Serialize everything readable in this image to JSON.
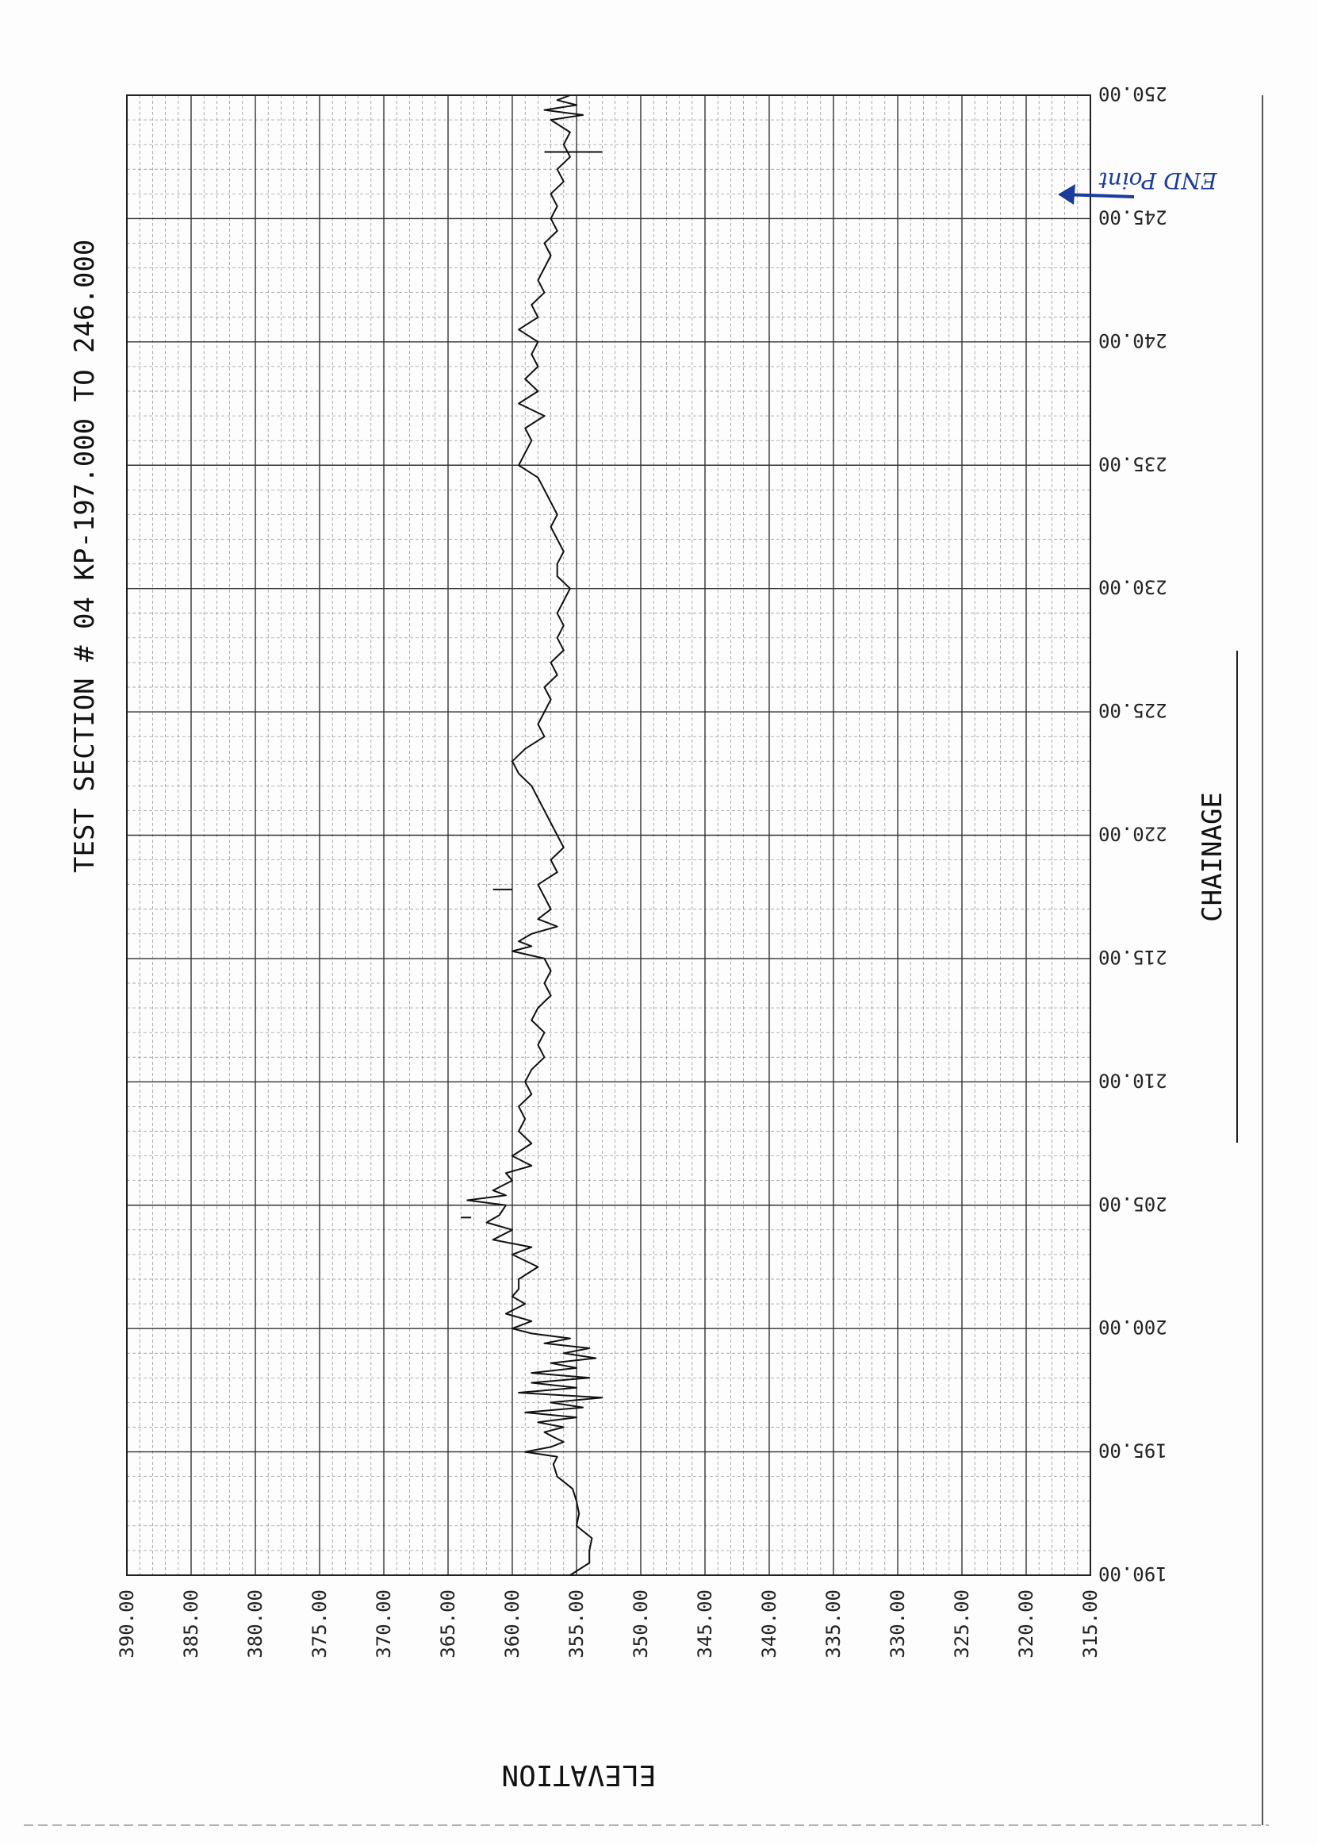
{
  "title": "TEST SECTION # 04 KP-197.000 TO 246.000",
  "annotation": "END Point",
  "chart_data": {
    "type": "line",
    "title": "TEST SECTION # 04 KP-197.000 TO 246.000",
    "xlabel": "CHAINAGE",
    "ylabel": "ELEVATION",
    "x_axis": {
      "min": 190,
      "max": 250,
      "major_step": 5,
      "tick_labels": [
        "190.00",
        "195.00",
        "200.00",
        "205.00",
        "210.00",
        "215.00",
        "220.00",
        "225.00",
        "230.00",
        "235.00",
        "240.00",
        "245.00",
        "250.00"
      ]
    },
    "y_axis": {
      "min": 315,
      "max": 390,
      "major_step": 5,
      "tick_labels": [
        "390.00",
        "385.00",
        "380.00",
        "375.00",
        "370.00",
        "365.00",
        "360.00",
        "355.00",
        "350.00",
        "345.00",
        "340.00",
        "335.00",
        "330.00",
        "325.00",
        "320.00",
        "315.00"
      ]
    },
    "grid": true,
    "orientation": "rotated-90",
    "series": [
      {
        "color": "#111111",
        "points": [
          [
            190.0,
            355.5
          ],
          [
            190.5,
            354.0
          ],
          [
            191.0,
            354.0
          ],
          [
            191.5,
            353.8
          ],
          [
            192.0,
            355.0
          ],
          [
            192.5,
            354.8
          ],
          [
            193.0,
            355.0
          ],
          [
            193.5,
            355.3
          ],
          [
            194.0,
            356.5
          ],
          [
            194.5,
            356.8
          ],
          [
            194.8,
            356.5
          ],
          [
            195.0,
            359.0
          ],
          [
            195.2,
            357.0
          ],
          [
            195.4,
            356.0
          ],
          [
            195.6,
            356.8
          ],
          [
            195.8,
            357.5
          ],
          [
            196.0,
            356.0
          ],
          [
            196.2,
            358.0
          ],
          [
            196.4,
            355.0
          ],
          [
            196.6,
            359.0
          ],
          [
            196.8,
            354.5
          ],
          [
            197.0,
            357.0
          ],
          [
            197.2,
            353.0
          ],
          [
            197.4,
            359.5
          ],
          [
            197.6,
            355.0
          ],
          [
            197.8,
            358.5
          ],
          [
            198.0,
            354.0
          ],
          [
            198.2,
            358.5
          ],
          [
            198.4,
            355.0
          ],
          [
            198.6,
            357.0
          ],
          [
            198.8,
            353.5
          ],
          [
            199.0,
            356.0
          ],
          [
            199.2,
            354.0
          ],
          [
            199.4,
            357.5
          ],
          [
            199.6,
            355.5
          ],
          [
            199.8,
            358.5
          ],
          [
            200.0,
            360.0
          ],
          [
            200.3,
            358.5
          ],
          [
            200.6,
            360.5
          ],
          [
            201.0,
            359.0
          ],
          [
            201.3,
            360.0
          ],
          [
            201.6,
            359.5
          ],
          [
            202.0,
            359.5
          ],
          [
            202.5,
            358.0
          ],
          [
            203.0,
            360.0
          ],
          [
            203.3,
            358.5
          ],
          [
            203.6,
            361.5
          ],
          [
            204.0,
            360.0
          ],
          [
            204.3,
            362.0
          ],
          [
            204.6,
            361.0
          ],
          [
            205.0,
            360.5
          ],
          [
            205.2,
            363.5
          ],
          [
            205.4,
            360.5
          ],
          [
            205.6,
            361.5
          ],
          [
            206.0,
            360.0
          ],
          [
            206.3,
            360.5
          ],
          [
            206.6,
            358.5
          ],
          [
            207.0,
            360.0
          ],
          [
            207.5,
            358.5
          ],
          [
            208.0,
            359.5
          ],
          [
            208.5,
            359.0
          ],
          [
            209.0,
            359.5
          ],
          [
            209.5,
            358.5
          ],
          [
            210.0,
            359.0
          ],
          [
            210.5,
            358.5
          ],
          [
            211.0,
            357.5
          ],
          [
            211.5,
            358.0
          ],
          [
            212.0,
            357.5
          ],
          [
            212.5,
            358.5
          ],
          [
            213.0,
            358.0
          ],
          [
            213.5,
            357.0
          ],
          [
            214.0,
            357.5
          ],
          [
            214.5,
            357.0
          ],
          [
            215.0,
            357.5
          ],
          [
            215.3,
            360.0
          ],
          [
            215.5,
            358.5
          ],
          [
            215.7,
            359.5
          ],
          [
            216.0,
            358.5
          ],
          [
            216.3,
            356.5
          ],
          [
            216.6,
            358.0
          ],
          [
            217.0,
            357.0
          ],
          [
            217.5,
            357.5
          ],
          [
            218.0,
            358.0
          ],
          [
            218.5,
            356.5
          ],
          [
            219.0,
            357.0
          ],
          [
            219.5,
            356.0
          ],
          [
            220.0,
            356.5
          ],
          [
            220.5,
            357.0
          ],
          [
            221.0,
            357.5
          ],
          [
            221.5,
            358.0
          ],
          [
            222.0,
            358.5
          ],
          [
            222.5,
            359.5
          ],
          [
            223.0,
            360.0
          ],
          [
            223.5,
            359.0
          ],
          [
            224.0,
            357.5
          ],
          [
            224.5,
            358.0
          ],
          [
            225.0,
            357.5
          ],
          [
            225.5,
            357.0
          ],
          [
            226.0,
            357.5
          ],
          [
            226.5,
            356.5
          ],
          [
            227.0,
            357.0
          ],
          [
            227.5,
            356.0
          ],
          [
            228.0,
            356.5
          ],
          [
            228.5,
            356.0
          ],
          [
            229.0,
            356.5
          ],
          [
            229.5,
            356.0
          ],
          [
            230.0,
            355.5
          ],
          [
            230.5,
            356.5
          ],
          [
            231.0,
            356.5
          ],
          [
            231.5,
            356.0
          ],
          [
            232.0,
            356.5
          ],
          [
            232.5,
            357.0
          ],
          [
            233.0,
            356.5
          ],
          [
            233.5,
            357.0
          ],
          [
            234.0,
            357.5
          ],
          [
            234.5,
            358.0
          ],
          [
            235.0,
            359.5
          ],
          [
            235.5,
            359.0
          ],
          [
            236.0,
            358.5
          ],
          [
            236.5,
            359.0
          ],
          [
            237.0,
            357.5
          ],
          [
            237.5,
            359.5
          ],
          [
            238.0,
            358.0
          ],
          [
            238.5,
            359.0
          ],
          [
            239.0,
            358.0
          ],
          [
            239.5,
            358.5
          ],
          [
            240.0,
            358.0
          ],
          [
            240.5,
            359.5
          ],
          [
            241.0,
            358.0
          ],
          [
            241.5,
            358.5
          ],
          [
            242.0,
            357.5
          ],
          [
            242.5,
            358.0
          ],
          [
            243.0,
            357.5
          ],
          [
            243.5,
            357.0
          ],
          [
            244.0,
            357.5
          ],
          [
            244.5,
            356.5
          ],
          [
            245.0,
            357.0
          ],
          [
            245.5,
            356.5
          ],
          [
            246.0,
            357.0
          ],
          [
            246.5,
            356.0
          ],
          [
            247.0,
            356.5
          ],
          [
            247.5,
            355.5
          ],
          [
            248.0,
            356.0
          ],
          [
            248.5,
            355.5
          ],
          [
            249.0,
            357.0
          ],
          [
            249.2,
            354.5
          ],
          [
            249.4,
            357.5
          ],
          [
            249.6,
            355.0
          ],
          [
            249.8,
            356.5
          ],
          [
            250.0,
            355.5
          ]
        ]
      },
      {
        "color": "#111111",
        "segments": [
          [
            [
              247.7,
              353.0
            ],
            [
              247.7,
              357.5
            ]
          ],
          [
            [
              217.8,
              360.0
            ],
            [
              217.8,
              361.5
            ]
          ],
          [
            [
              204.5,
              363.2
            ],
            [
              204.5,
              364.0
            ]
          ]
        ]
      }
    ]
  }
}
